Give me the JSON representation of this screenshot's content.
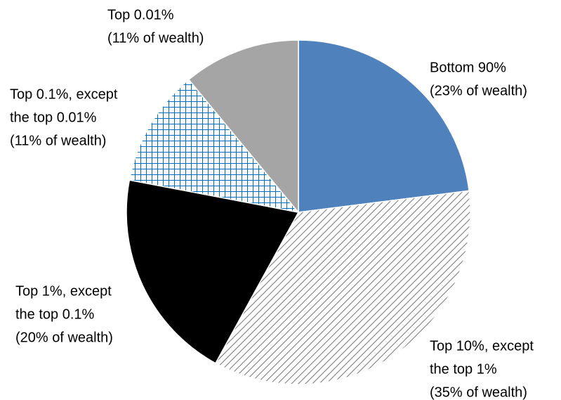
{
  "chart_data": {
    "type": "pie",
    "categories": [
      [
        "Bottom 90%"
      ],
      [
        "Top 10%, except",
        "the top 1%"
      ],
      [
        "Top 1%, except",
        "the top 0.1%"
      ],
      [
        "Top 0.1%, except",
        "the top 0.01%"
      ],
      [
        "Top 0.01%"
      ]
    ],
    "values": [
      23,
      35,
      20,
      11,
      11
    ],
    "value_labels": [
      "(23% of wealth)",
      "(35% of wealth)",
      "(20% of wealth)",
      "(11% of wealth)",
      "(11% of wealth)"
    ],
    "colors": [
      "#4f81bd",
      "#7f7f7f",
      "#000000",
      "#0070c0",
      "#a5a5a5"
    ],
    "patterns": [
      "solid",
      "diagonal",
      "solid",
      "grid",
      "solid"
    ]
  }
}
